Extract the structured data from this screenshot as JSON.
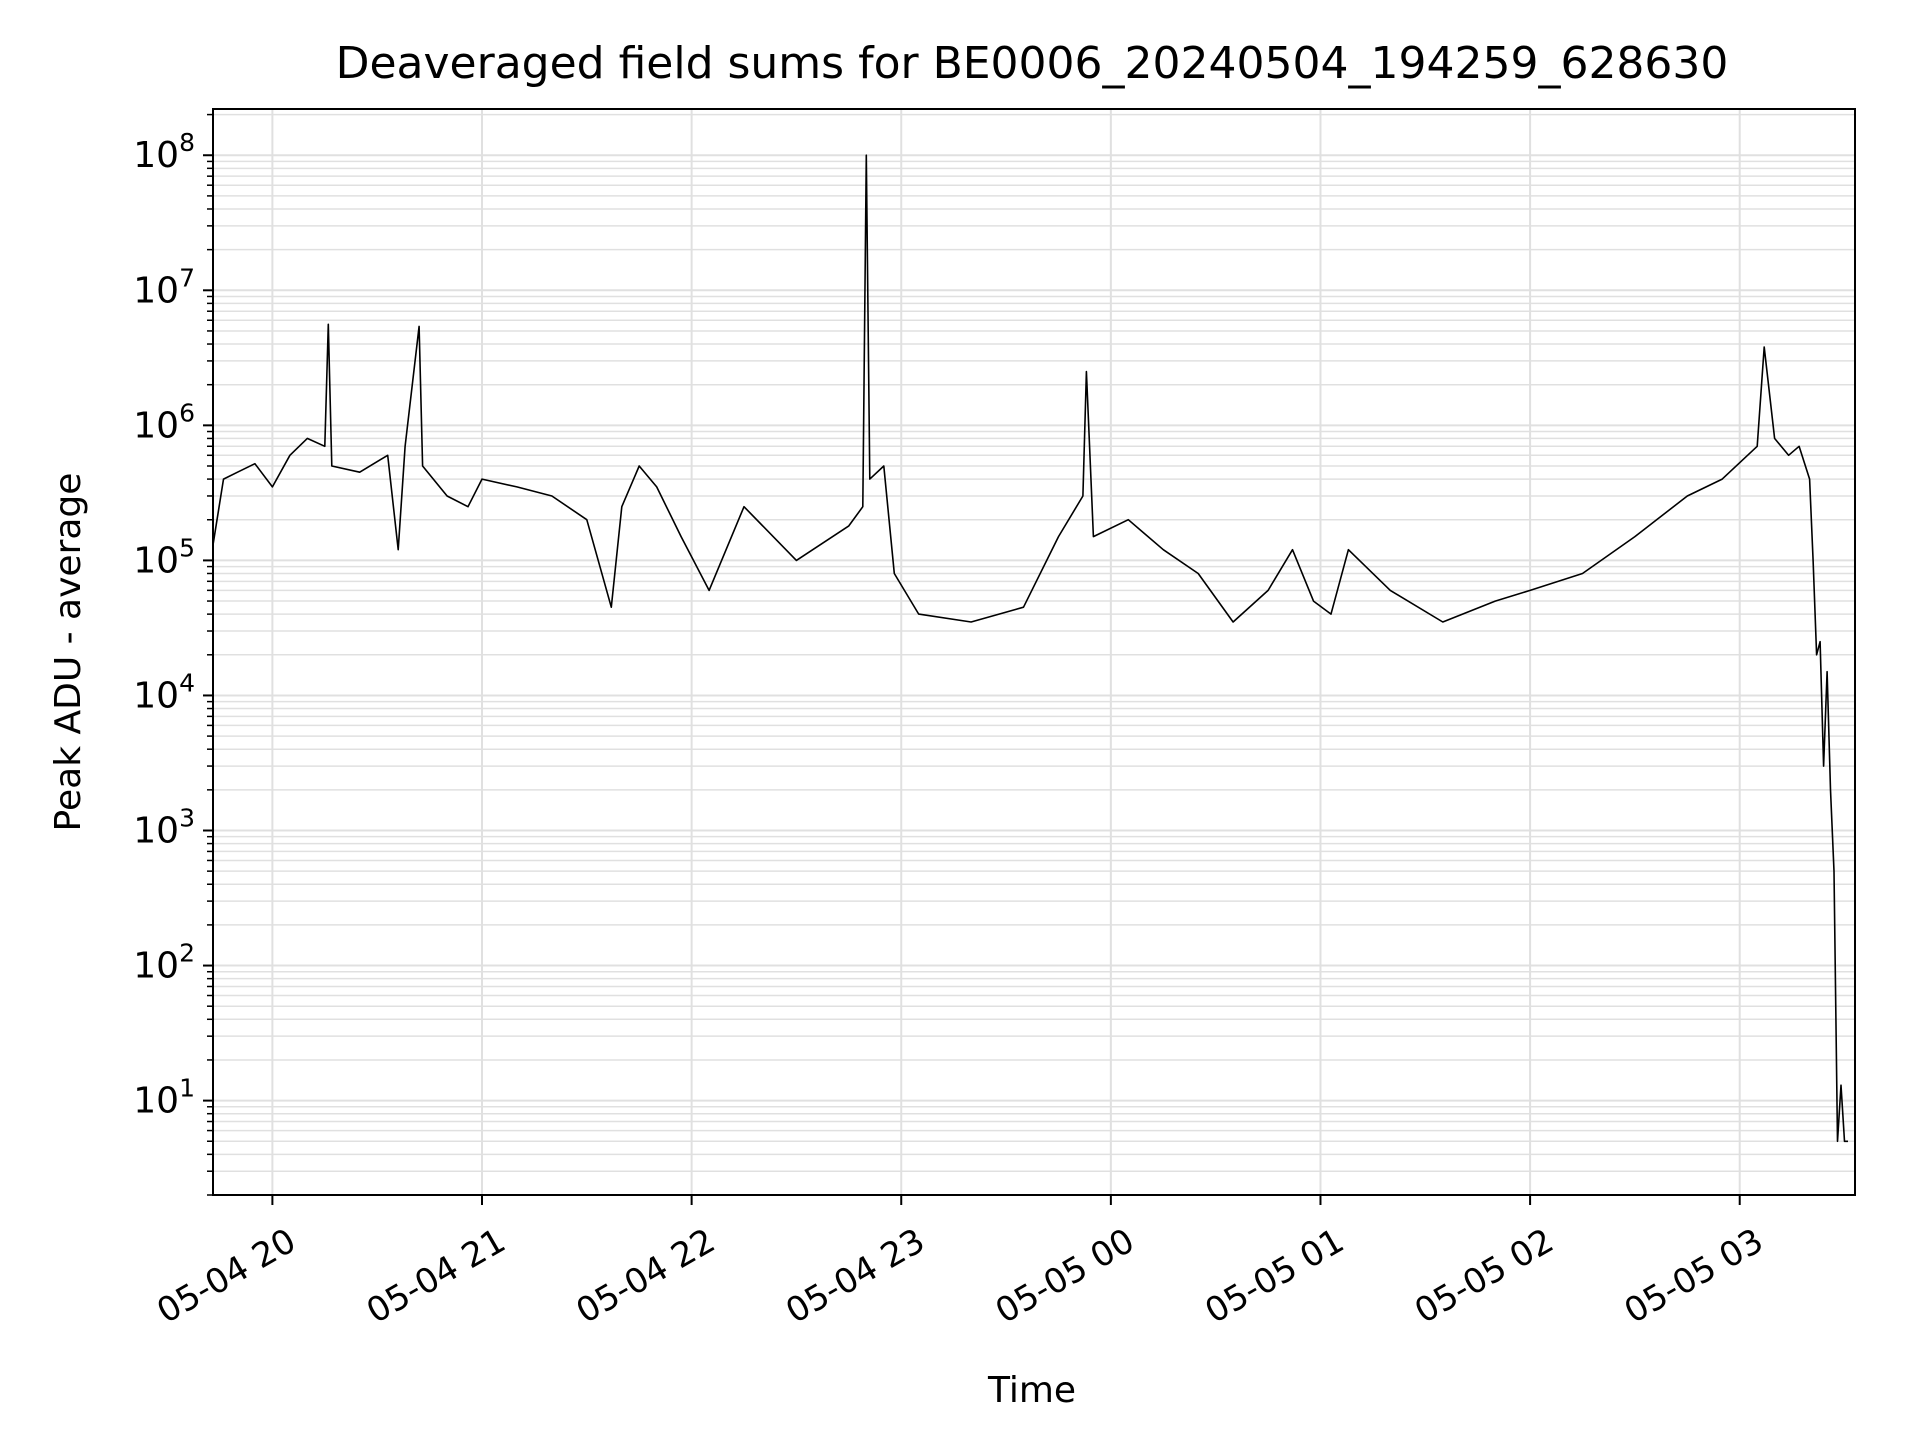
{
  "chart_data": {
    "type": "line",
    "title": "Deaveraged field sums for BE0006_20240504_194259_628630",
    "xlabel": "Time",
    "ylabel": "Peak ADU - average",
    "yscale": "log",
    "ylim": [
      2.0,
      220000000.0
    ],
    "xlim": [
      "2024-05-04 19:43",
      "2024-05-05 03:33"
    ],
    "grid": true,
    "colors": {
      "line": "#000000",
      "grid": "#e0e0e0",
      "axes": "#000000"
    },
    "x_ticks": [
      {
        "t": "2024-05-04 20:00",
        "label": "05-04 20"
      },
      {
        "t": "2024-05-04 21:00",
        "label": "05-04 21"
      },
      {
        "t": "2024-05-04 22:00",
        "label": "05-04 22"
      },
      {
        "t": "2024-05-04 23:00",
        "label": "05-04 23"
      },
      {
        "t": "2024-05-05 00:00",
        "label": "05-05 00"
      },
      {
        "t": "2024-05-05 01:00",
        "label": "05-05 01"
      },
      {
        "t": "2024-05-05 02:00",
        "label": "05-05 02"
      },
      {
        "t": "2024-05-05 03:00",
        "label": "05-05 03"
      }
    ],
    "y_ticks": [
      {
        "value": 10,
        "base": "10",
        "exp": "1"
      },
      {
        "value": 100,
        "base": "10",
        "exp": "2"
      },
      {
        "value": 1000,
        "base": "10",
        "exp": "3"
      },
      {
        "value": 10000,
        "base": "10",
        "exp": "4"
      },
      {
        "value": 100000,
        "base": "10",
        "exp": "5"
      },
      {
        "value": 1000000,
        "base": "10",
        "exp": "6"
      },
      {
        "value": 10000000,
        "base": "10",
        "exp": "7"
      },
      {
        "value": 100000000,
        "base": "10",
        "exp": "8"
      }
    ],
    "series": [
      {
        "points": [
          [
            "2024-05-04 19:43",
            130000
          ],
          [
            "2024-05-04 19:46",
            400000
          ],
          [
            "2024-05-04 19:50",
            450000
          ],
          [
            "2024-05-04 19:55",
            520000
          ],
          [
            "2024-05-04 20:00",
            350000
          ],
          [
            "2024-05-04 20:05",
            600000
          ],
          [
            "2024-05-04 20:10",
            800000
          ],
          [
            "2024-05-04 20:15",
            700000
          ],
          [
            "2024-05-04 20:16",
            5600000
          ],
          [
            "2024-05-04 20:17",
            500000
          ],
          [
            "2024-05-04 20:25",
            450000
          ],
          [
            "2024-05-04 20:33",
            600000
          ],
          [
            "2024-05-04 20:36",
            120000
          ],
          [
            "2024-05-04 20:38",
            700000
          ],
          [
            "2024-05-04 20:42",
            5400000
          ],
          [
            "2024-05-04 20:43",
            500000
          ],
          [
            "2024-05-04 20:50",
            300000
          ],
          [
            "2024-05-04 20:56",
            250000
          ],
          [
            "2024-05-04 21:00",
            400000
          ],
          [
            "2024-05-04 21:10",
            350000
          ],
          [
            "2024-05-04 21:20",
            300000
          ],
          [
            "2024-05-04 21:30",
            200000
          ],
          [
            "2024-05-04 21:37",
            45000
          ],
          [
            "2024-05-04 21:40",
            250000
          ],
          [
            "2024-05-04 21:45",
            500000
          ],
          [
            "2024-05-04 21:50",
            350000
          ],
          [
            "2024-05-04 21:57",
            150000
          ],
          [
            "2024-05-04 22:05",
            60000
          ],
          [
            "2024-05-04 22:15",
            250000
          ],
          [
            "2024-05-04 22:30",
            100000
          ],
          [
            "2024-05-04 22:45",
            180000
          ],
          [
            "2024-05-04 22:49",
            250000
          ],
          [
            "2024-05-04 22:50",
            100000000
          ],
          [
            "2024-05-04 22:51",
            400000
          ],
          [
            "2024-05-04 22:55",
            500000
          ],
          [
            "2024-05-04 22:58",
            80000
          ],
          [
            "2024-05-04 23:05",
            40000
          ],
          [
            "2024-05-04 23:20",
            35000
          ],
          [
            "2024-05-04 23:35",
            45000
          ],
          [
            "2024-05-04 23:45",
            150000
          ],
          [
            "2024-05-04 23:52",
            300000
          ],
          [
            "2024-05-04 23:53",
            2500000
          ],
          [
            "2024-05-04 23:55",
            150000
          ],
          [
            "2024-05-05 00:05",
            200000
          ],
          [
            "2024-05-05 00:15",
            120000
          ],
          [
            "2024-05-05 00:25",
            80000
          ],
          [
            "2024-05-05 00:35",
            35000
          ],
          [
            "2024-05-05 00:45",
            60000
          ],
          [
            "2024-05-05 00:52",
            120000
          ],
          [
            "2024-05-05 00:58",
            50000
          ],
          [
            "2024-05-05 01:03",
            40000
          ],
          [
            "2024-05-05 01:08",
            120000
          ],
          [
            "2024-05-05 01:20",
            60000
          ],
          [
            "2024-05-05 01:35",
            35000
          ],
          [
            "2024-05-05 01:50",
            50000
          ],
          [
            "2024-05-05 02:00",
            60000
          ],
          [
            "2024-05-05 02:15",
            80000
          ],
          [
            "2024-05-05 02:30",
            150000
          ],
          [
            "2024-05-05 02:45",
            300000
          ],
          [
            "2024-05-05 02:55",
            400000
          ],
          [
            "2024-05-05 03:05",
            700000
          ],
          [
            "2024-05-05 03:07",
            3800000
          ],
          [
            "2024-05-05 03:10",
            800000
          ],
          [
            "2024-05-05 03:14",
            600000
          ],
          [
            "2024-05-05 03:17",
            700000
          ],
          [
            "2024-05-05 03:20",
            400000
          ],
          [
            "2024-05-05 03:21",
            100000
          ],
          [
            "2024-05-05 03:22",
            20000
          ],
          [
            "2024-05-05 03:23",
            25000
          ],
          [
            "2024-05-05 03:24",
            3000
          ],
          [
            "2024-05-05 03:25",
            15000
          ],
          [
            "2024-05-05 03:26",
            2000
          ],
          [
            "2024-05-05 03:27",
            500
          ],
          [
            "2024-05-05 03:28",
            5
          ],
          [
            "2024-05-05 03:29",
            13
          ],
          [
            "2024-05-05 03:30",
            5
          ],
          [
            "2024-05-05 03:31",
            5
          ]
        ]
      }
    ]
  }
}
